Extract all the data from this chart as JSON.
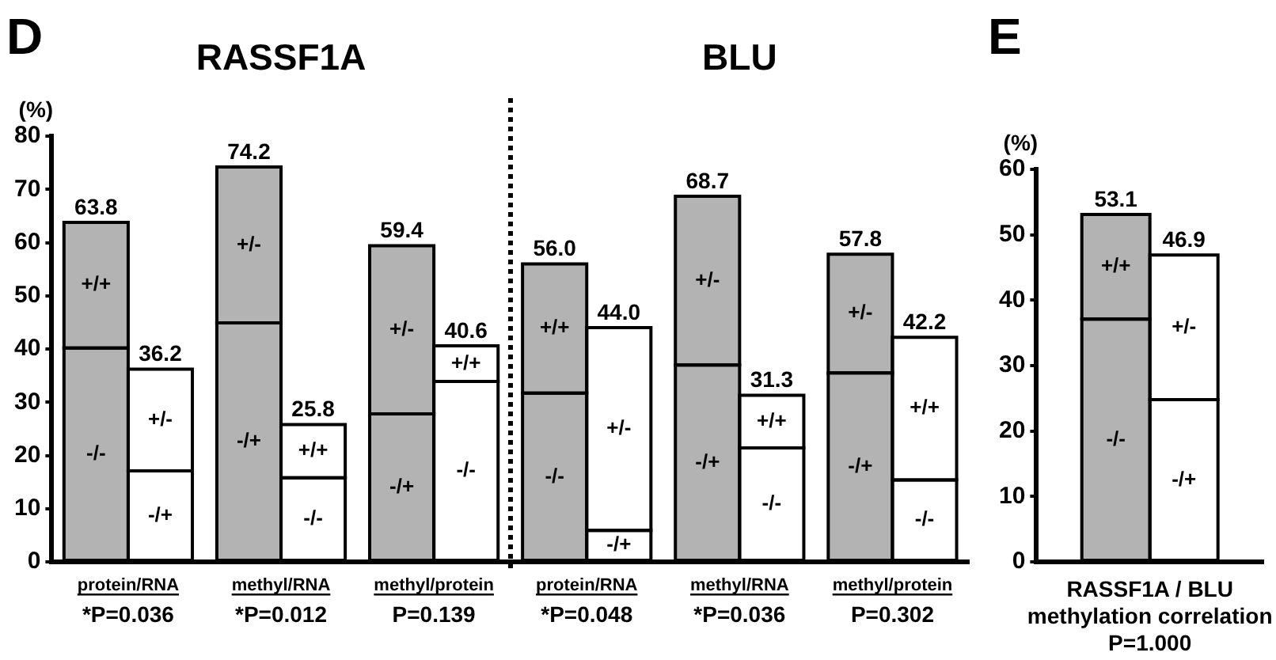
{
  "chart_data": [
    {
      "type": "bar",
      "ylabel": "(%)",
      "categories": [
        null,
        null,
        null,
        null,
        null,
        null,
        null,
        null,
        null,
        null,
        null,
        null
      ],
      "stacked": true,
      "ylim": [
        0,
        80
      ],
      "yticks": [
        0,
        10,
        20,
        30,
        40,
        50,
        60,
        70,
        80
      ],
      "series": [
        {
          "colors": [
            "#b3b3b3",
            "#ffffff",
            "#b3b3b3",
            "#ffffff",
            "#b3b3b3",
            "#ffffff",
            "#b3b3b3",
            "#ffffff",
            "#b3b3b3",
            "#ffffff",
            "#b3b3b3",
            "#ffffff"
          ],
          "values": [
            40.2,
            17.1,
            44.9,
            15.8,
            27.8,
            33.9,
            31.7,
            5.9,
            37.0,
            21.4,
            35.5,
            15.4
          ],
          "value_labels": [
            "-/-",
            "-/+",
            "-/+",
            "-/-",
            "-/+",
            "-/-",
            "-/-",
            "-/+",
            "-/+",
            "-/-",
            "-/+",
            "-/-"
          ]
        },
        {
          "colors": [
            "#b3b3b3",
            "#ffffff",
            "#b3b3b3",
            "#ffffff",
            "#b3b3b3",
            "#ffffff",
            "#b3b3b3",
            "#ffffff",
            "#b3b3b3",
            "#ffffff",
            "#b3b3b3",
            "#ffffff"
          ],
          "values": [
            23.6,
            19.1,
            29.3,
            10.0,
            31.6,
            6.7,
            24.3,
            38.1,
            31.7,
            9.9,
            22.3,
            26.8
          ],
          "value_labels": [
            "+/+",
            "+/-",
            "+/-",
            "+/+",
            "+/-",
            "+/+",
            "+/+",
            "+/-",
            "+/-",
            "+/+",
            "+/-",
            "+/+"
          ]
        }
      ],
      "totals": [
        "63.8",
        "36.2",
        "74.2",
        "25.8",
        "59.4",
        "40.6",
        "56.0",
        "44.0",
        "68.7",
        "31.3",
        "57.8",
        "42.2"
      ],
      "annotations": [
        "D",
        "RASSF1A",
        "BLU",
        "protein/RNA",
        "methyl/RNA",
        "methyl/protein",
        "protein/RNA",
        "methyl/RNA",
        "methyl/protein",
        "*P=0.036",
        "*P=0.012",
        "P=0.139",
        "*P=0.048",
        "*P=0.036",
        "P=0.302"
      ]
    },
    {
      "type": "bar",
      "ylabel": "(%)",
      "xlabel": "RASSF1A / BLU methylation correlation",
      "categories": [
        null,
        null
      ],
      "stacked": true,
      "ylim": [
        0,
        60
      ],
      "yticks": [
        0,
        10,
        20,
        30,
        40,
        50,
        60
      ],
      "series": [
        {
          "colors": [
            "#b3b3b3",
            "#ffffff"
          ],
          "values": [
            37.1,
            24.8
          ],
          "value_labels": [
            "-/-",
            "-/+"
          ]
        },
        {
          "colors": [
            "#b3b3b3",
            "#ffffff"
          ],
          "values": [
            16.0,
            22.1
          ],
          "value_labels": [
            "+/+",
            "+/-"
          ]
        }
      ],
      "totals": [
        "53.1",
        "46.9"
      ],
      "annotations": [
        "E",
        "P=1.000"
      ]
    }
  ]
}
